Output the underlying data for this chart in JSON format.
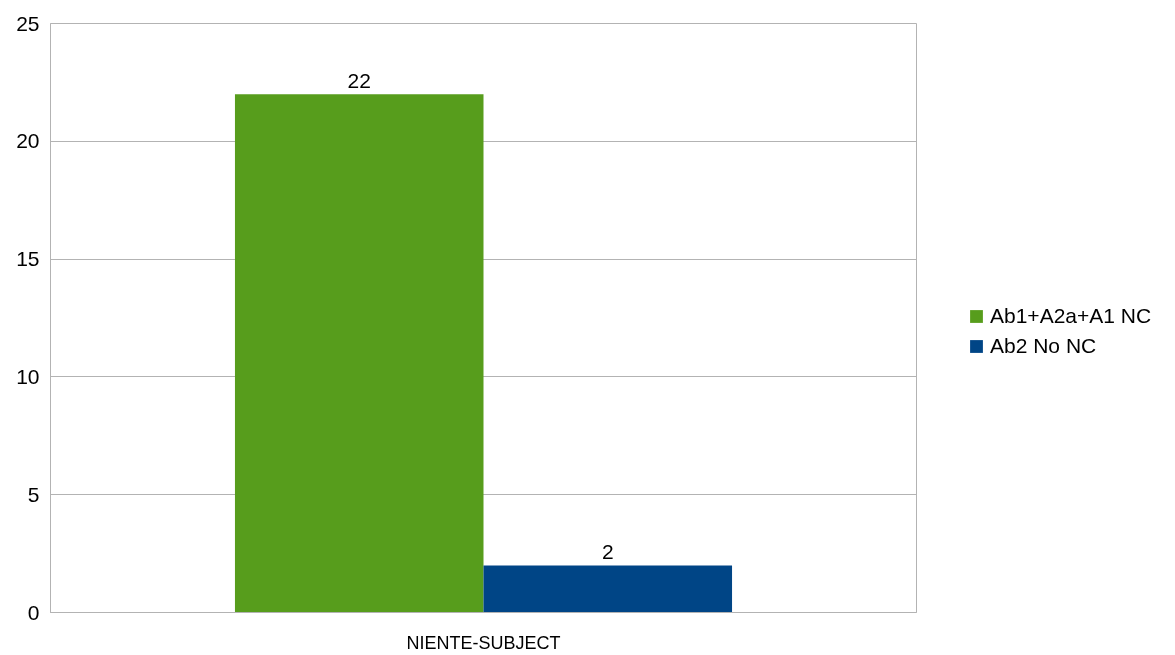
{
  "chart_data": {
    "type": "bar",
    "categories": [
      "NIENTE-SUBJECT"
    ],
    "series": [
      {
        "name": "Ab1+A2a+A1 NC",
        "color": "#579d1c",
        "values": [
          22
        ]
      },
      {
        "name": "Ab2 No NC",
        "color": "#004586",
        "values": [
          2
        ]
      }
    ],
    "ylim": [
      0,
      25
    ],
    "yticks": [
      0,
      5,
      10,
      15,
      20,
      25
    ],
    "grid": "y",
    "legend": "right",
    "data_labels": true
  }
}
